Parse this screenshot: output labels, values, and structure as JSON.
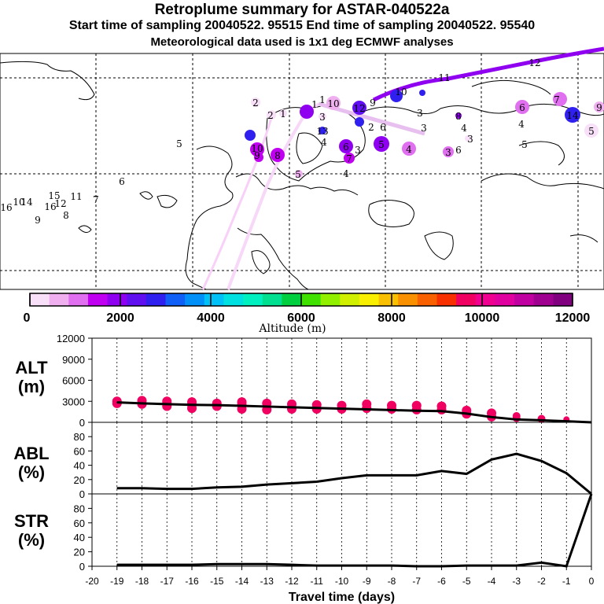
{
  "header": {
    "title": "Retroplume summary for ASTAR-040522a",
    "sampling_line": "Start time of sampling 20040522. 95515     End time of sampling 20040522. 95540",
    "met_line": "Meteorological data used is 1x1 deg ECMWF analyses"
  },
  "colorbar": {
    "label": "Altitude (m)",
    "ticks": [
      "0",
      "2000",
      "4000",
      "6000",
      "8000",
      "10000",
      "12000"
    ],
    "colors": [
      "#f8e0f8",
      "#f0b0f0",
      "#e070f0",
      "#c000f0",
      "#9000f0",
      "#6010f0",
      "#3020f0",
      "#1060f8",
      "#0090f8",
      "#00c0f8",
      "#00e0e0",
      "#00f0c0",
      "#00e090",
      "#00d040",
      "#40e000",
      "#90f000",
      "#d0f000",
      "#f8f000",
      "#f8c000",
      "#f89000",
      "#f86000",
      "#f83000",
      "#f00060",
      "#f00090",
      "#e000a0",
      "#c000a0",
      "#a00090",
      "#800080"
    ]
  },
  "map": {
    "labels": [
      {
        "t": "2",
        "x": 325,
        "y": 130
      },
      {
        "t": "2",
        "x": 344,
        "y": 146
      },
      {
        "t": "1",
        "x": 360,
        "y": 144
      },
      {
        "t": "1",
        "x": 400,
        "y": 132
      },
      {
        "t": "1",
        "x": 410,
        "y": 126
      },
      {
        "t": "10",
        "x": 424,
        "y": 131
      },
      {
        "t": "3",
        "x": 410,
        "y": 148
      },
      {
        "t": "12",
        "x": 457,
        "y": 137
      },
      {
        "t": "9",
        "x": 474,
        "y": 130
      },
      {
        "t": "10",
        "x": 510,
        "y": 116
      },
      {
        "t": "11",
        "x": 565,
        "y": 98
      },
      {
        "t": "12",
        "x": 680,
        "y": 79
      },
      {
        "t": "3",
        "x": 534,
        "y": 143
      },
      {
        "t": "2",
        "x": 472,
        "y": 161
      },
      {
        "t": "6",
        "x": 487,
        "y": 161
      },
      {
        "t": "3",
        "x": 539,
        "y": 162
      },
      {
        "t": "13",
        "x": 410,
        "y": 166
      },
      {
        "t": "4",
        "x": 412,
        "y": 180
      },
      {
        "t": "10",
        "x": 327,
        "y": 188
      },
      {
        "t": "9",
        "x": 327,
        "y": 197
      },
      {
        "t": "8",
        "x": 353,
        "y": 197
      },
      {
        "t": "6",
        "x": 440,
        "y": 186
      },
      {
        "t": "3",
        "x": 455,
        "y": 190
      },
      {
        "t": "5",
        "x": 485,
        "y": 183
      },
      {
        "t": "4",
        "x": 520,
        "y": 189
      },
      {
        "t": "7",
        "x": 444,
        "y": 201
      },
      {
        "t": "4",
        "x": 590,
        "y": 162
      },
      {
        "t": "3",
        "x": 598,
        "y": 176
      },
      {
        "t": "3",
        "x": 570,
        "y": 193
      },
      {
        "t": "6",
        "x": 583,
        "y": 190
      },
      {
        "t": "4",
        "x": 663,
        "y": 157
      },
      {
        "t": "5",
        "x": 667,
        "y": 183
      },
      {
        "t": "6",
        "x": 664,
        "y": 136
      },
      {
        "t": "7",
        "x": 708,
        "y": 126
      },
      {
        "t": "14",
        "x": 728,
        "y": 146
      },
      {
        "t": "9",
        "x": 762,
        "y": 136
      },
      {
        "t": "5",
        "x": 752,
        "y": 166
      },
      {
        "t": "8",
        "x": 583,
        "y": 147
      },
      {
        "t": "5",
        "x": 228,
        "y": 182
      },
      {
        "t": "6",
        "x": 155,
        "y": 230
      },
      {
        "t": "5",
        "x": 379,
        "y": 221
      },
      {
        "t": "4",
        "x": 440,
        "y": 220
      },
      {
        "t": "16",
        "x": 8,
        "y": 263
      },
      {
        "t": "10",
        "x": 24,
        "y": 256
      },
      {
        "t": "14",
        "x": 34,
        "y": 256
      },
      {
        "t": "15",
        "x": 69,
        "y": 248
      },
      {
        "t": "16",
        "x": 64,
        "y": 262
      },
      {
        "t": "12",
        "x": 77,
        "y": 258
      },
      {
        "t": "11",
        "x": 97,
        "y": 249
      },
      {
        "t": "7",
        "x": 122,
        "y": 253
      },
      {
        "t": "9",
        "x": 48,
        "y": 279
      },
      {
        "t": "8",
        "x": 84,
        "y": 273
      }
    ]
  },
  "chart_data": [
    {
      "type": "line",
      "title": "ALT (m)",
      "ylabel": "ALT (m)",
      "ylim": [
        0,
        12000
      ],
      "yticks": [
        0,
        3000,
        6000,
        9000,
        12000
      ],
      "x": [
        -19,
        -18,
        -17,
        -16,
        -15,
        -14,
        -13,
        -12,
        -11,
        -10,
        -9,
        -8,
        -7,
        -6,
        -5,
        -4,
        -3,
        -2,
        -1,
        0
      ],
      "series": [
        {
          "name": "mean altitude",
          "values": [
            2850,
            2700,
            2600,
            2500,
            2450,
            2350,
            2250,
            2150,
            2050,
            1950,
            1850,
            1750,
            1650,
            1600,
            1250,
            750,
            400,
            300,
            150,
            0
          ]
        }
      ],
      "scatter_x": [
        -19,
        -19,
        -18,
        -18,
        -17,
        -17,
        -17,
        -16,
        -16,
        -16,
        -15,
        -15,
        -14,
        -14,
        -14,
        -13,
        -13,
        -12,
        -12,
        -11,
        -11,
        -10,
        -10,
        -9,
        -9,
        -8,
        -8,
        -7,
        -7,
        -6,
        -6,
        -5,
        -5,
        -4,
        -4,
        -3,
        -3,
        -2,
        -1
      ],
      "scatter_y": [
        3000,
        2700,
        3100,
        2600,
        3000,
        2700,
        2300,
        2900,
        2500,
        2000,
        2700,
        2300,
        2900,
        2500,
        1900,
        2700,
        1800,
        2600,
        1900,
        2500,
        1900,
        2400,
        1900,
        2600,
        2000,
        2400,
        1900,
        2400,
        1800,
        2300,
        1800,
        1700,
        1200,
        1300,
        800,
        900,
        600,
        500,
        400
      ],
      "xlim": [
        -20,
        0
      ]
    },
    {
      "type": "line",
      "title": "ABL (%)",
      "ylabel": "ABL (%)",
      "ylim": [
        0,
        100
      ],
      "yticks": [
        0,
        20,
        40,
        60,
        80
      ],
      "x": [
        -19,
        -18,
        -17,
        -16,
        -15,
        -14,
        -13,
        -12,
        -11,
        -10,
        -9,
        -8,
        -7,
        -6,
        -5,
        -4,
        -3,
        -2,
        -1,
        0
      ],
      "series": [
        {
          "name": "ABL fraction",
          "values": [
            8,
            8,
            7,
            7,
            9,
            10,
            13,
            15,
            17,
            22,
            26,
            26,
            26,
            32,
            28,
            48,
            56,
            46,
            29,
            0
          ]
        }
      ],
      "xlim": [
        -20,
        0
      ]
    },
    {
      "type": "line",
      "title": "STR (%)",
      "ylabel": "STR (%)",
      "ylim": [
        0,
        100
      ],
      "yticks": [
        0,
        20,
        40,
        60,
        80
      ],
      "x": [
        -19,
        -18,
        -17,
        -16,
        -15,
        -14,
        -13,
        -12,
        -11,
        -10,
        -9,
        -8,
        -7,
        -6,
        -5,
        -4,
        -3,
        -2,
        -1,
        0
      ],
      "series": [
        {
          "name": "stratospheric fraction",
          "values": [
            2,
            2,
            2,
            2,
            3,
            3,
            3,
            2,
            1,
            1,
            1,
            1,
            0,
            0,
            1,
            1,
            1,
            5,
            0,
            100
          ]
        }
      ],
      "xlim": [
        -20,
        0
      ],
      "xticks": [
        "-20",
        "-19",
        "-18",
        "-17",
        "-16",
        "-15",
        "-14",
        "-13",
        "-12",
        "-11",
        "-10",
        "-9",
        "-8",
        "-7",
        "-6",
        "-5",
        "-4",
        "-3",
        "-2",
        "-1",
        "0"
      ],
      "xlabel": "Travel time (days)"
    }
  ],
  "panels": {
    "alt_label": "ALT",
    "alt_unit": "(m)",
    "abl_label": "ABL",
    "abl_unit": "(%)",
    "str_label": "STR",
    "str_unit": "(%)"
  }
}
